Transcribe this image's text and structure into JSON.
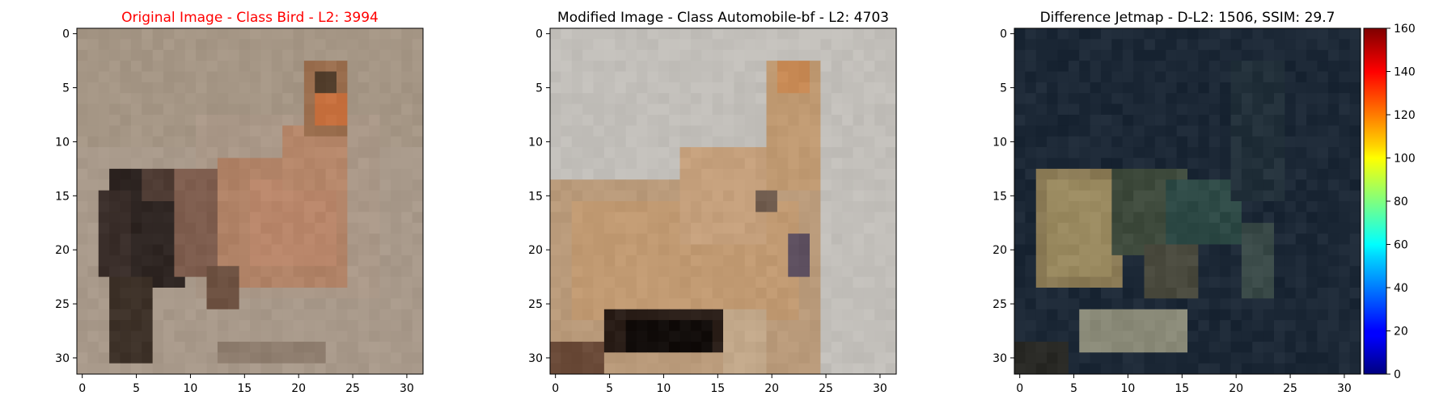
{
  "chart_data": [
    {
      "type": "heatmap",
      "title": "Original Image - Class Bird - L2: 3994",
      "title_color": "#ff0000",
      "xticks": [
        "0",
        "5",
        "10",
        "15",
        "20",
        "25",
        "30"
      ],
      "yticks": [
        "0",
        "5",
        "10",
        "15",
        "20",
        "25",
        "30"
      ],
      "grid_size": [
        32,
        32
      ],
      "xlim": [
        -0.5,
        31.5
      ],
      "ylim": [
        31.5,
        -0.5
      ],
      "background_color": "#a89a8a",
      "regions": [
        {
          "rect": [
            0,
            0,
            31,
            31
          ],
          "color": "#a8998a"
        },
        {
          "rect": [
            0,
            0,
            31,
            10
          ],
          "color": "#a59685"
        },
        {
          "rect": [
            11,
            8,
            27,
            24
          ],
          "color": "#aa9888"
        },
        {
          "rect": [
            13,
            12,
            24,
            23
          ],
          "color": "#b08266"
        },
        {
          "rect": [
            16,
            14,
            23,
            21
          ],
          "color": "#b9866a"
        },
        {
          "rect": [
            19,
            9,
            24,
            14
          ],
          "color": "#b6876a"
        },
        {
          "rect": [
            21,
            3,
            24,
            9
          ],
          "color": "#9a6e4e"
        },
        {
          "rect": [
            22,
            6,
            24,
            8
          ],
          "color": "#c7703e"
        },
        {
          "rect": [
            22,
            4,
            23,
            5
          ],
          "color": "#54402e"
        },
        {
          "rect": [
            3,
            13,
            9,
            23
          ],
          "color": "#2e2522"
        },
        {
          "rect": [
            2,
            15,
            4,
            22
          ],
          "color": "#3a2e2a"
        },
        {
          "rect": [
            6,
            13,
            9,
            15
          ],
          "color": "#4e3b33"
        },
        {
          "rect": [
            9,
            13,
            12,
            22
          ],
          "color": "#7e5d4e"
        },
        {
          "rect": [
            3,
            23,
            6,
            30
          ],
          "color": "#3d3128"
        },
        {
          "rect": [
            12,
            22,
            14,
            25
          ],
          "color": "#6e5242"
        },
        {
          "rect": [
            13,
            29,
            22,
            30
          ],
          "color": "#8e7d6e"
        }
      ]
    },
    {
      "type": "heatmap",
      "title": "Modified Image - Class Automobile-bf - L2: 4703",
      "title_color": "#000000",
      "xticks": [
        "0",
        "5",
        "10",
        "15",
        "20",
        "25",
        "30"
      ],
      "yticks": [
        "0",
        "5",
        "10",
        "15",
        "20",
        "25",
        "30"
      ],
      "grid_size": [
        32,
        32
      ],
      "xlim": [
        -0.5,
        31.5
      ],
      "ylim": [
        31.5,
        -0.5
      ],
      "background_color": "#c4c2bd",
      "regions": [
        {
          "rect": [
            0,
            0,
            31,
            31
          ],
          "color": "#c2bfba"
        },
        {
          "rect": [
            0,
            14,
            24,
            31
          ],
          "color": "#b99a7a"
        },
        {
          "rect": [
            2,
            16,
            22,
            26
          ],
          "color": "#c19a72"
        },
        {
          "rect": [
            12,
            11,
            19,
            19
          ],
          "color": "#c5a07c"
        },
        {
          "rect": [
            20,
            3,
            24,
            14
          ],
          "color": "#c09a72"
        },
        {
          "rect": [
            21,
            3,
            23,
            5
          ],
          "color": "#c88a55"
        },
        {
          "rect": [
            5,
            26,
            15,
            29
          ],
          "color": "#2a1e18"
        },
        {
          "rect": [
            7,
            27,
            14,
            29
          ],
          "color": "#120d0b"
        },
        {
          "rect": [
            0,
            29,
            4,
            31
          ],
          "color": "#6a4a38"
        },
        {
          "rect": [
            19,
            15,
            20,
            16
          ],
          "color": "#6e5a4c"
        },
        {
          "rect": [
            22,
            19,
            23,
            22
          ],
          "color": "#5e5060"
        },
        {
          "rect": [
            16,
            26,
            19,
            31
          ],
          "color": "#c2a88a"
        }
      ]
    },
    {
      "type": "heatmap",
      "title": "Difference Jetmap - D-L2: 1506, SSIM: 29.7",
      "title_color": "#000000",
      "xticks": [
        "0",
        "5",
        "10",
        "15",
        "20",
        "25",
        "30"
      ],
      "yticks": [
        "0",
        "5",
        "10",
        "15",
        "20",
        "25",
        "30"
      ],
      "grid_size": [
        32,
        32
      ],
      "xlim": [
        -0.5,
        31.5
      ],
      "ylim": [
        31.5,
        -0.5
      ],
      "background_color": "#1a2a3a",
      "regions": [
        {
          "rect": [
            0,
            0,
            31,
            31
          ],
          "color": "#1c2836"
        },
        {
          "rect": [
            2,
            13,
            9,
            23
          ],
          "color": "#8a7a55"
        },
        {
          "rect": [
            3,
            14,
            8,
            22
          ],
          "color": "#9a8a60"
        },
        {
          "rect": [
            9,
            13,
            15,
            20
          ],
          "color": "#3e4a3c"
        },
        {
          "rect": [
            14,
            14,
            20,
            19
          ],
          "color": "#2e4a46"
        },
        {
          "rect": [
            20,
            3,
            24,
            15
          ],
          "color": "#22303a"
        },
        {
          "rect": [
            6,
            26,
            15,
            29
          ],
          "color": "#8a8a78"
        },
        {
          "rect": [
            12,
            20,
            16,
            24
          ],
          "color": "#4a4a3e"
        },
        {
          "rect": [
            0,
            29,
            4,
            31
          ],
          "color": "#2a2a26"
        },
        {
          "rect": [
            21,
            18,
            23,
            24
          ],
          "color": "#3a4a48"
        }
      ],
      "colorbar": {
        "min": 0,
        "max": 160,
        "ticks": [
          "0",
          "20",
          "40",
          "60",
          "80",
          "100",
          "120",
          "140",
          "160"
        ],
        "colormap": "jet"
      }
    }
  ]
}
